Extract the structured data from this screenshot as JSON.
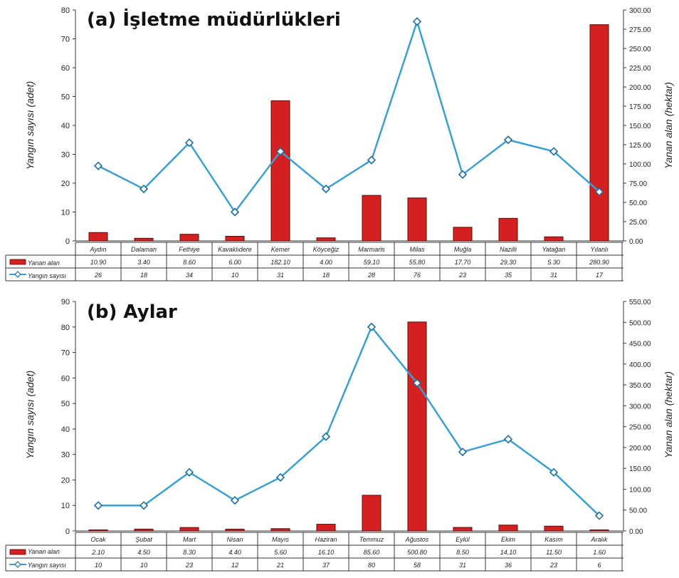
{
  "chart_data": [
    {
      "type": "bar",
      "title": "(a) İşletme müdürlükleri",
      "ylabel": "Yangın sayısı (adet)",
      "y2label": "Yanan alan (hektar)",
      "ylim": [
        0,
        80
      ],
      "y2lim": [
        0,
        300
      ],
      "yticks": [
        0,
        10,
        20,
        30,
        40,
        50,
        60,
        70,
        80
      ],
      "y2ticks": [
        "0.00",
        "25.00",
        "50.00",
        "75.00",
        "100.00",
        "125.00",
        "150.00",
        "175.00",
        "200.00",
        "225.00",
        "250.00",
        "275.00",
        "300.00"
      ],
      "categories": [
        "Aydın",
        "Dalaman",
        "Fethiye",
        "Kavaklıdere",
        "Kemer",
        "Köyceğiz",
        "Marmaris",
        "Milas",
        "Muğla",
        "Nazilli",
        "Yatağan",
        "Yılanlı"
      ],
      "series": [
        {
          "name": "Yanan alan",
          "type": "bar",
          "axis": "right",
          "color": "#d42020",
          "values": [
            10.9,
            3.4,
            8.6,
            6.0,
            182.1,
            4.0,
            59.1,
            55.8,
            17.7,
            29.3,
            5.3,
            280.9
          ],
          "labels": [
            "10.90",
            "3.40",
            "8.60",
            "6.00",
            "182.10",
            "4.00",
            "59.10",
            "55.80",
            "17.70",
            "29.30",
            "5.30",
            "280.90"
          ]
        },
        {
          "name": "Yangın sayısı",
          "type": "line",
          "axis": "left",
          "color": "#3a9fd0",
          "values": [
            26,
            18,
            34,
            10,
            31,
            18,
            28,
            76,
            23,
            35,
            31,
            17
          ],
          "labels": [
            "26",
            "18",
            "34",
            "10",
            "31",
            "18",
            "28",
            "76",
            "23",
            "35",
            "31",
            "17"
          ]
        }
      ],
      "data_table": true,
      "grid": false
    },
    {
      "type": "bar",
      "title": "(b) Aylar",
      "ylabel": "Yangın sayısı (adet)",
      "y2label": "Yanan alan (hektar)",
      "ylim": [
        0,
        90
      ],
      "y2lim": [
        0,
        550
      ],
      "yticks": [
        0,
        10,
        20,
        30,
        40,
        50,
        60,
        70,
        80,
        90
      ],
      "y2ticks": [
        "0.00",
        "50.00",
        "100.00",
        "150.00",
        "200.00",
        "250.00",
        "300.00",
        "350.00",
        "400.00",
        "450.00",
        "500.00",
        "550.00"
      ],
      "categories": [
        "Ocak",
        "Şubat",
        "Mart",
        "Nisan",
        "Mayıs",
        "Haziran",
        "Temmuz",
        "Ağustos",
        "Eylül",
        "Ekim",
        "Kasım",
        "Aralık"
      ],
      "series": [
        {
          "name": "Yanan alan",
          "type": "bar",
          "axis": "right",
          "color": "#d42020",
          "values": [
            2.1,
            4.5,
            8.3,
            4.4,
            5.6,
            16.1,
            85.6,
            500.8,
            8.5,
            14.1,
            11.5,
            1.6
          ],
          "labels": [
            "2.10",
            "4.50",
            "8.30",
            "4.40",
            "5.60",
            "16.10",
            "85.60",
            "500.80",
            "8.50",
            "14.10",
            "11.50",
            "1.60"
          ]
        },
        {
          "name": "Yangın sayısı",
          "type": "line",
          "axis": "left",
          "color": "#3a9fd0",
          "values": [
            10,
            10,
            23,
            12,
            21,
            37,
            80,
            58,
            31,
            36,
            23,
            6
          ],
          "labels": [
            "10",
            "10",
            "23",
            "12",
            "21",
            "37",
            "80",
            "58",
            "31",
            "36",
            "23",
            "6"
          ]
        }
      ],
      "data_table": true,
      "grid": false
    }
  ]
}
